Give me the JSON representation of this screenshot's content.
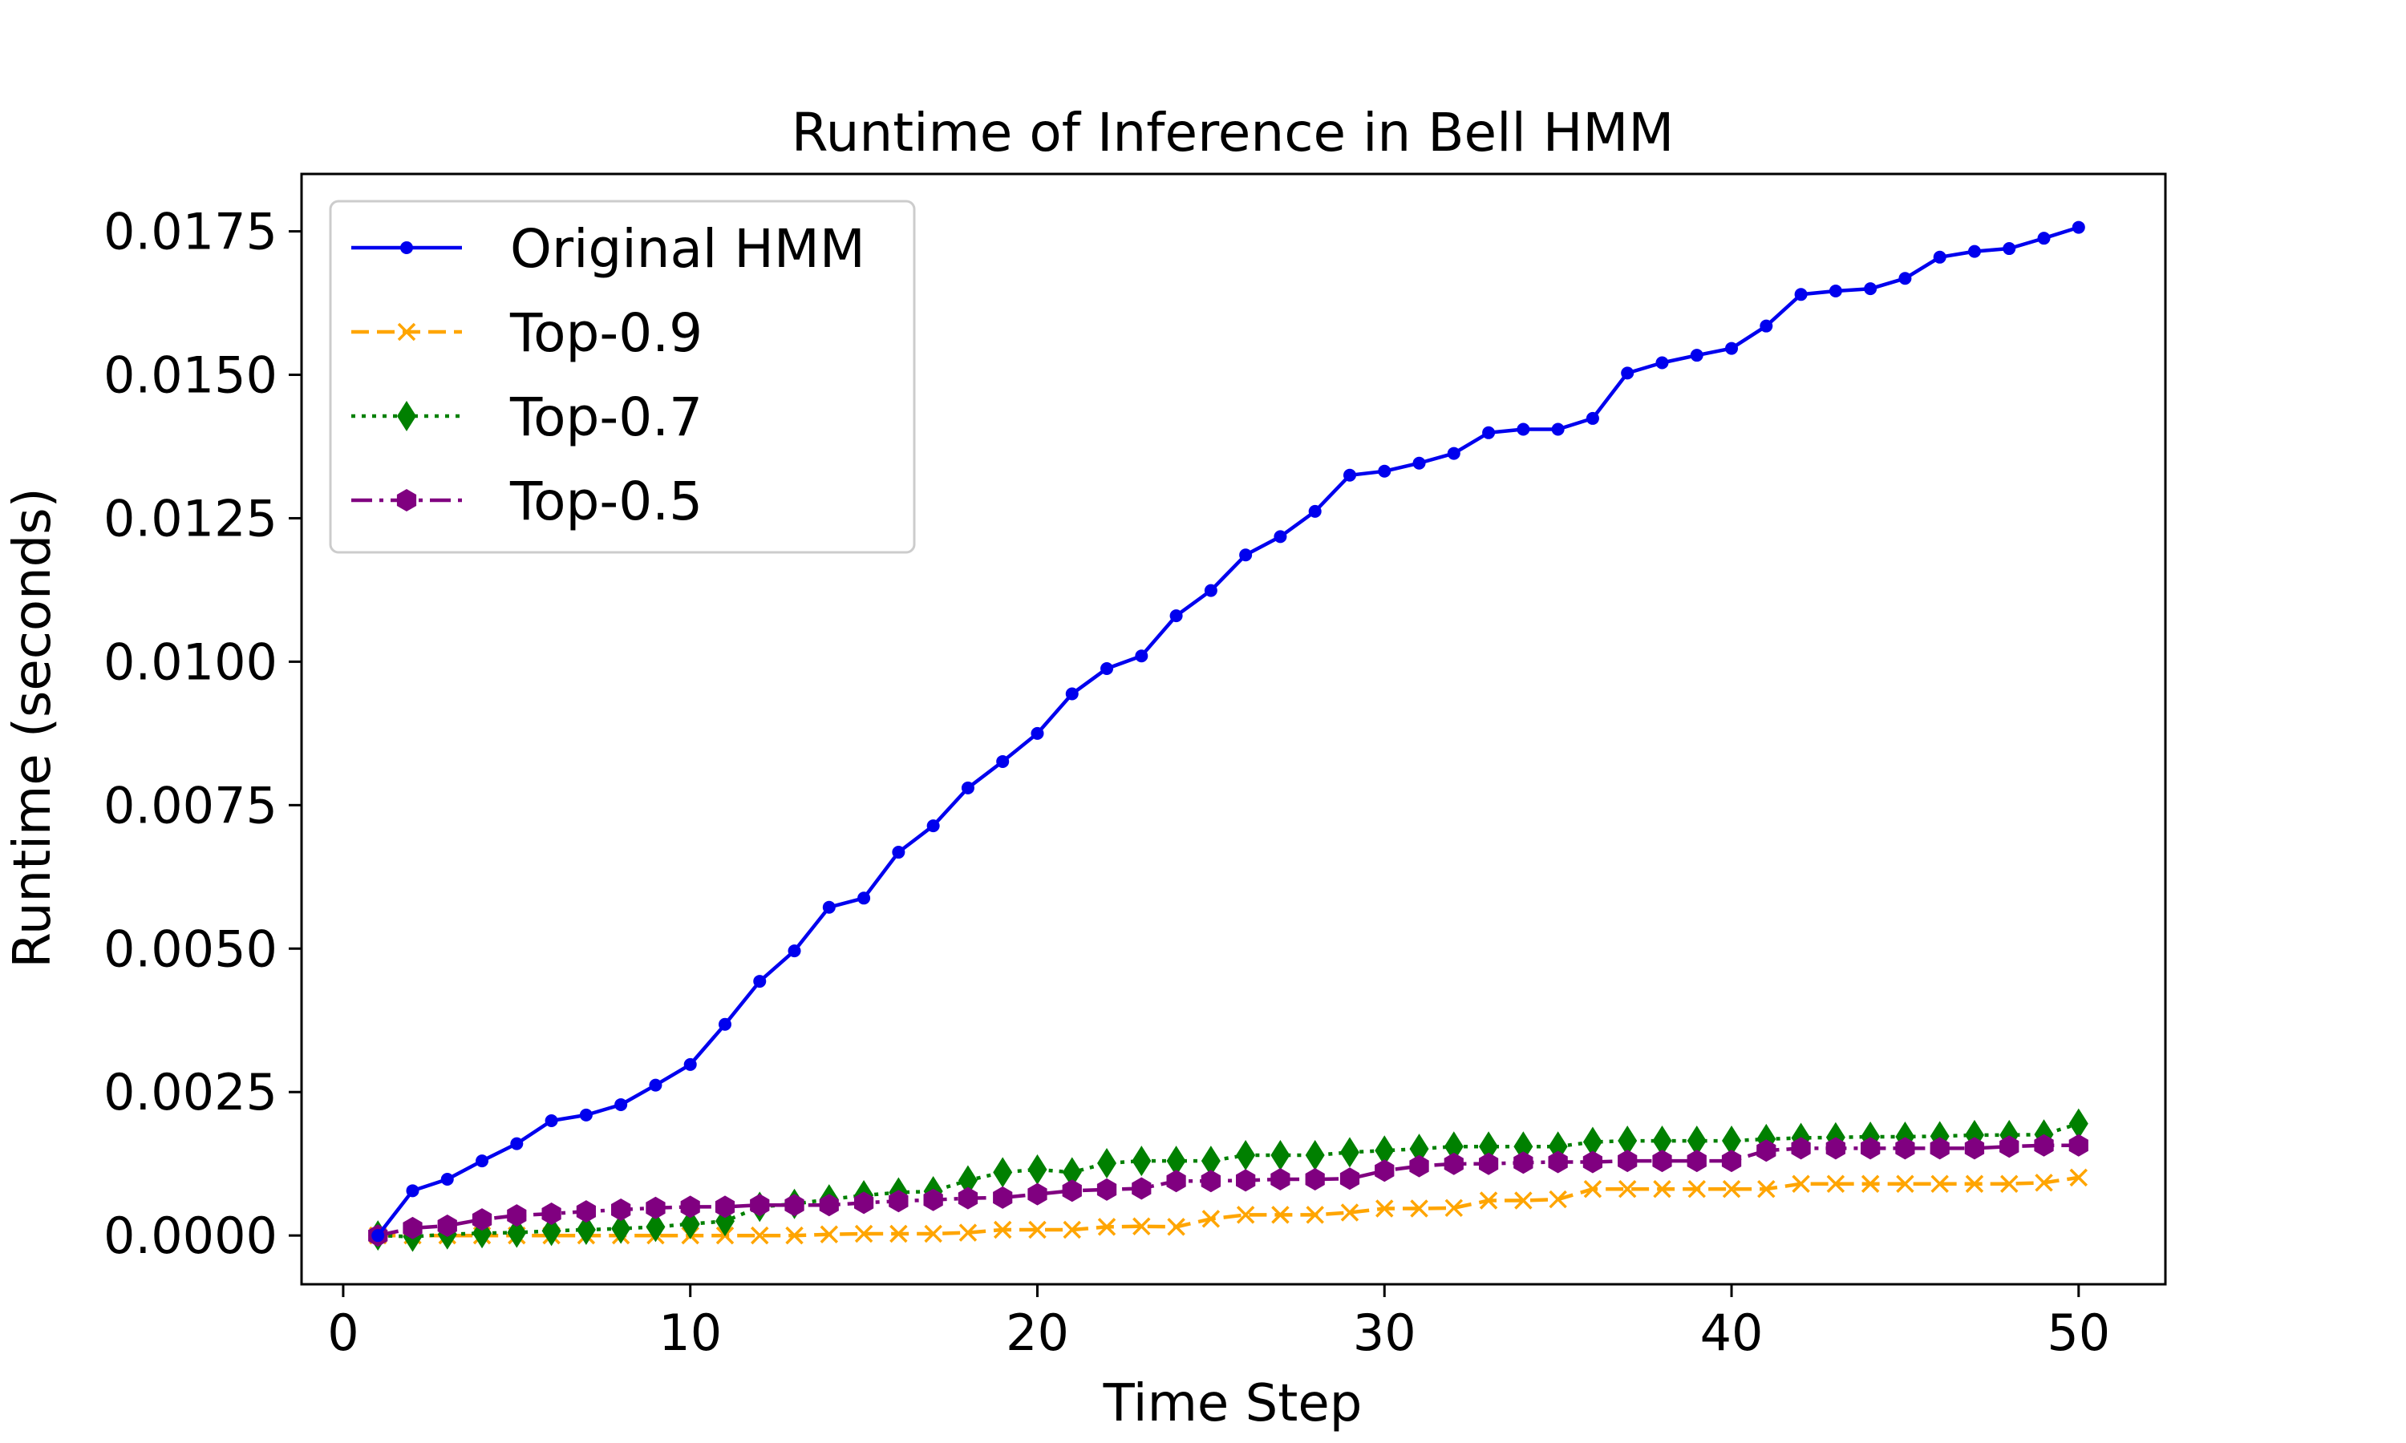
{
  "chart_data": {
    "type": "line",
    "title": "Runtime of Inference in Bell HMM",
    "xlabel": "Time Step",
    "ylabel": "Runtime (seconds)",
    "xlim": [
      -1.2,
      52.5
    ],
    "ylim": [
      -0.00085,
      0.0185
    ],
    "xticks": [
      0,
      10,
      20,
      30,
      40,
      50
    ],
    "xtick_labels": [
      "0",
      "10",
      "20",
      "30",
      "40",
      "50"
    ],
    "yticks": [
      0,
      0.0025,
      0.005,
      0.0075,
      0.01,
      0.0125,
      0.015,
      0.0175
    ],
    "ytick_labels": [
      "0.0000",
      "0.0025",
      "0.0050",
      "0.0075",
      "0.0100",
      "0.0125",
      "0.0150",
      "0.0175"
    ],
    "grid": false,
    "legend_position": "top-left",
    "x": [
      1,
      2,
      3,
      4,
      5,
      6,
      7,
      8,
      9,
      10,
      11,
      12,
      13,
      14,
      15,
      16,
      17,
      18,
      19,
      20,
      21,
      22,
      23,
      24,
      25,
      26,
      27,
      28,
      29,
      30,
      31,
      32,
      33,
      34,
      35,
      36,
      37,
      38,
      39,
      40,
      41,
      42,
      43,
      44,
      45,
      46,
      47,
      48,
      49,
      50
    ],
    "series": [
      {
        "name": "Original HMM",
        "color": "#0000ee",
        "line_style": "solid",
        "marker": "dot",
        "values": [
          0.0,
          0.00078,
          0.00098,
          0.0013,
          0.0016,
          0.002,
          0.0021,
          0.00228,
          0.00262,
          0.00298,
          0.00368,
          0.00443,
          0.00496,
          0.00572,
          0.00588,
          0.00668,
          0.00714,
          0.0078,
          0.00826,
          0.00875,
          0.00944,
          0.00988,
          0.0101,
          0.0108,
          0.01124,
          0.01186,
          0.01218,
          0.01262,
          0.01325,
          0.01332,
          0.01346,
          0.01363,
          0.01399,
          0.01405,
          0.01405,
          0.01424,
          0.01503,
          0.01521,
          0.01534,
          0.01546,
          0.01585,
          0.0164,
          0.01646,
          0.0165,
          0.01668,
          0.01705,
          0.01715,
          0.0172,
          0.01738,
          0.01757
        ]
      },
      {
        "name": "Top-0.9",
        "color": "#ffa500",
        "line_style": "dashed",
        "marker": "x",
        "values": [
          0.0,
          0.0,
          0.0,
          0.0,
          0.0,
          0.0,
          0.0,
          0.0,
          0.0,
          0.0,
          0.0,
          0.0,
          0.0,
          2e-05,
          3e-05,
          3e-05,
          3e-05,
          5e-05,
          0.0001,
          0.0001,
          0.0001,
          0.00015,
          0.00016,
          0.00015,
          0.00029,
          0.00036,
          0.00036,
          0.00036,
          0.0004,
          0.00047,
          0.00047,
          0.00048,
          0.00061,
          0.00061,
          0.00063,
          0.00081,
          0.00081,
          0.00081,
          0.00081,
          0.00081,
          0.00081,
          0.0009,
          0.0009,
          0.0009,
          0.0009,
          0.0009,
          0.0009,
          0.0009,
          0.00092,
          0.00101
        ]
      },
      {
        "name": "Top-0.7",
        "color": "#008000",
        "line_style": "dotted",
        "marker": "diamond",
        "values": [
          0.0,
          -2e-05,
          2e-05,
          4e-05,
          5e-05,
          8e-05,
          0.0001,
          0.00012,
          0.00015,
          0.0002,
          0.00025,
          0.0005,
          0.00055,
          0.00063,
          0.0007,
          0.00075,
          0.00077,
          0.00096,
          0.0011,
          0.00115,
          0.0011,
          0.00126,
          0.0013,
          0.0013,
          0.0013,
          0.0014,
          0.0014,
          0.0014,
          0.00145,
          0.00148,
          0.00151,
          0.00155,
          0.00155,
          0.00155,
          0.00155,
          0.00163,
          0.00165,
          0.00165,
          0.00165,
          0.00165,
          0.00168,
          0.0017,
          0.00171,
          0.00172,
          0.00172,
          0.00173,
          0.00175,
          0.00175,
          0.00176,
          0.00195
        ]
      },
      {
        "name": "Top-0.5",
        "color": "#800080",
        "line_style": "dashdot",
        "marker": "hexagon",
        "values": [
          0.0,
          0.00013,
          0.00017,
          0.00028,
          0.00035,
          0.00038,
          0.00042,
          0.00045,
          0.00048,
          0.0005,
          0.0005,
          0.00053,
          0.00053,
          0.00053,
          0.00057,
          0.0006,
          0.00062,
          0.00065,
          0.00066,
          0.00072,
          0.00078,
          0.0008,
          0.00082,
          0.00095,
          0.00095,
          0.00096,
          0.00098,
          0.00098,
          0.00099,
          0.00113,
          0.00121,
          0.00125,
          0.00125,
          0.00127,
          0.00128,
          0.00128,
          0.0013,
          0.0013,
          0.0013,
          0.0013,
          0.00148,
          0.00152,
          0.00152,
          0.00152,
          0.00152,
          0.00152,
          0.00152,
          0.00155,
          0.00157,
          0.00157
        ]
      }
    ]
  }
}
